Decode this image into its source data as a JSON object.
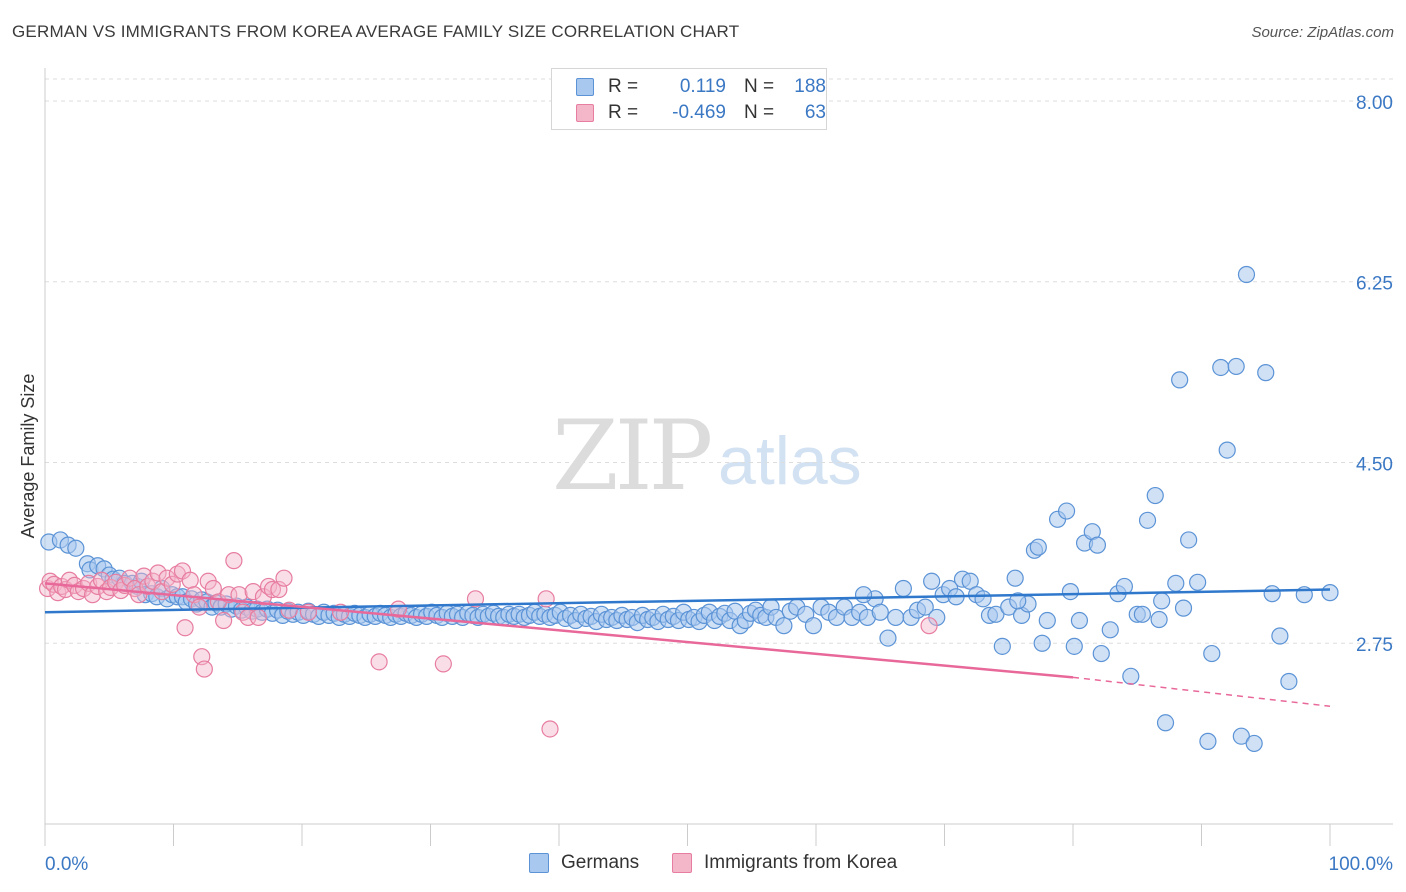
{
  "title": "GERMAN VS IMMIGRANTS FROM KOREA AVERAGE FAMILY SIZE CORRELATION CHART",
  "source": "Source: ZipAtlas.com",
  "watermark": {
    "zip": "ZIP",
    "atlas": "atlas"
  },
  "legend_top": [
    {
      "r_label": "R =",
      "r_value": "0.119",
      "n_label": "N =",
      "n_value": "188"
    },
    {
      "r_label": "R =",
      "r_value": "-0.469",
      "n_label": "N =",
      "n_value": "63"
    }
  ],
  "colors": {
    "blue_fill": "#a9c8ef",
    "blue_stroke": "#5b93d6",
    "blue_line": "#2f78cc",
    "pink_fill": "#f4b6c9",
    "pink_stroke": "#e77da0",
    "pink_line": "#e8689a",
    "tick_label": "#3b78c4",
    "grid": "#dddddd"
  },
  "chart_data": {
    "type": "scatter",
    "title": "GERMAN VS IMMIGRANTS FROM KOREA AVERAGE FAMILY SIZE CORRELATION CHART",
    "xlabel": "",
    "ylabel": "Average Family Size",
    "x_tick_labels": [
      "0.0%",
      "100.0%"
    ],
    "y_ticks": [
      2.75,
      4.5,
      6.25,
      8.0
    ],
    "y_tick_labels": [
      "2.75",
      "4.50",
      "6.25",
      "8.00"
    ],
    "xlim": [
      0,
      100
    ],
    "ylim": [
      1.0,
      8.3
    ],
    "grid": "horizontal-dashed",
    "legend_position": "bottom",
    "series": [
      {
        "name": "Germans",
        "r": 0.119,
        "n": 188,
        "trend": {
          "x": [
            0,
            100
          ],
          "y": [
            3.05,
            3.27
          ]
        },
        "points": [
          [
            0.3,
            3.73
          ],
          [
            1.2,
            3.75
          ],
          [
            1.8,
            3.7
          ],
          [
            2.4,
            3.67
          ],
          [
            3.3,
            3.52
          ],
          [
            3.5,
            3.46
          ],
          [
            4.1,
            3.5
          ],
          [
            4.6,
            3.47
          ],
          [
            5.0,
            3.41
          ],
          [
            5.3,
            3.37
          ],
          [
            5.8,
            3.38
          ],
          [
            6.2,
            3.33
          ],
          [
            6.8,
            3.33
          ],
          [
            7.2,
            3.3
          ],
          [
            7.5,
            3.35
          ],
          [
            7.8,
            3.22
          ],
          [
            8.3,
            3.23
          ],
          [
            8.7,
            3.2
          ],
          [
            9.1,
            3.28
          ],
          [
            9.5,
            3.18
          ],
          [
            9.9,
            3.22
          ],
          [
            10.3,
            3.2
          ],
          [
            10.7,
            3.2
          ],
          [
            11.0,
            3.15
          ],
          [
            11.4,
            3.18
          ],
          [
            11.8,
            3.13
          ],
          [
            12.2,
            3.17
          ],
          [
            12.6,
            3.15
          ],
          [
            13.0,
            3.1
          ],
          [
            13.3,
            3.14
          ],
          [
            13.7,
            3.1
          ],
          [
            14.1,
            3.13
          ],
          [
            14.5,
            3.08
          ],
          [
            14.9,
            3.11
          ],
          [
            15.3,
            3.07
          ],
          [
            15.7,
            3.1
          ],
          [
            16.1,
            3.06
          ],
          [
            16.5,
            3.08
          ],
          [
            16.9,
            3.05
          ],
          [
            17.3,
            3.08
          ],
          [
            17.7,
            3.04
          ],
          [
            18.1,
            3.07
          ],
          [
            18.5,
            3.02
          ],
          [
            18.9,
            3.06
          ],
          [
            19.3,
            3.03
          ],
          [
            19.7,
            3.05
          ],
          [
            20.1,
            3.02
          ],
          [
            20.5,
            3.06
          ],
          [
            20.9,
            3.03
          ],
          [
            21.3,
            3.01
          ],
          [
            21.7,
            3.05
          ],
          [
            22.1,
            3.02
          ],
          [
            22.5,
            3.04
          ],
          [
            22.9,
            3.0
          ],
          [
            23.3,
            3.03
          ],
          [
            23.7,
            3.01
          ],
          [
            24.1,
            3.04
          ],
          [
            24.5,
            3.02
          ],
          [
            24.9,
            3.0
          ],
          [
            25.3,
            3.03
          ],
          [
            25.7,
            3.01
          ],
          [
            26.1,
            3.04
          ],
          [
            26.5,
            3.02
          ],
          [
            26.9,
            3.0
          ],
          [
            27.3,
            3.03
          ],
          [
            27.7,
            3.01
          ],
          [
            28.1,
            3.04
          ],
          [
            28.5,
            3.02
          ],
          [
            28.9,
            3.0
          ],
          [
            29.3,
            3.03
          ],
          [
            29.7,
            3.01
          ],
          [
            30.1,
            3.05
          ],
          [
            30.5,
            3.02
          ],
          [
            30.9,
            3.0
          ],
          [
            31.3,
            3.04
          ],
          [
            31.7,
            3.01
          ],
          [
            32.1,
            3.03
          ],
          [
            32.5,
            3.0
          ],
          [
            32.9,
            3.04
          ],
          [
            33.3,
            3.02
          ],
          [
            33.7,
            3.0
          ],
          [
            34.1,
            3.03
          ],
          [
            34.5,
            3.01
          ],
          [
            34.9,
            3.04
          ],
          [
            35.3,
            3.01
          ],
          [
            35.7,
            3.0
          ],
          [
            36.1,
            3.03
          ],
          [
            36.5,
            3.01
          ],
          [
            36.9,
            3.03
          ],
          [
            37.3,
            3.0
          ],
          [
            37.7,
            3.02
          ],
          [
            38.1,
            3.05
          ],
          [
            38.5,
            3.01
          ],
          [
            38.9,
            3.03
          ],
          [
            39.3,
            3.0
          ],
          [
            39.7,
            3.02
          ],
          [
            40.1,
            3.05
          ],
          [
            40.5,
            2.99
          ],
          [
            40.9,
            3.02
          ],
          [
            41.3,
            2.97
          ],
          [
            41.7,
            3.03
          ],
          [
            42.1,
            2.99
          ],
          [
            42.5,
            3.01
          ],
          [
            42.9,
            2.96
          ],
          [
            43.3,
            3.03
          ],
          [
            43.7,
            2.98
          ],
          [
            44.1,
            3.0
          ],
          [
            44.5,
            2.97
          ],
          [
            44.9,
            3.02
          ],
          [
            45.3,
            2.98
          ],
          [
            45.7,
            3.0
          ],
          [
            46.1,
            2.95
          ],
          [
            46.5,
            3.02
          ],
          [
            46.9,
            2.98
          ],
          [
            47.3,
            3.0
          ],
          [
            47.7,
            2.96
          ],
          [
            48.1,
            3.03
          ],
          [
            48.5,
            2.98
          ],
          [
            48.9,
            3.01
          ],
          [
            49.3,
            2.97
          ],
          [
            49.7,
            3.05
          ],
          [
            50.1,
            2.98
          ],
          [
            50.5,
            3.0
          ],
          [
            50.9,
            2.96
          ],
          [
            51.3,
            3.02
          ],
          [
            51.7,
            3.05
          ],
          [
            52.1,
            2.97
          ],
          [
            52.5,
            3.01
          ],
          [
            52.9,
            3.04
          ],
          [
            53.3,
            2.97
          ],
          [
            53.7,
            3.06
          ],
          [
            54.1,
            2.92
          ],
          [
            54.5,
            2.97
          ],
          [
            54.9,
            3.04
          ],
          [
            55.3,
            3.07
          ],
          [
            55.7,
            3.02
          ],
          [
            56.1,
            3.0
          ],
          [
            56.5,
            3.1
          ],
          [
            56.9,
            3.0
          ],
          [
            57.5,
            2.92
          ],
          [
            58.0,
            3.06
          ],
          [
            58.5,
            3.1
          ],
          [
            59.2,
            3.03
          ],
          [
            59.8,
            2.92
          ],
          [
            60.4,
            3.1
          ],
          [
            61.0,
            3.05
          ],
          [
            61.6,
            3.0
          ],
          [
            62.2,
            3.1
          ],
          [
            62.8,
            3.0
          ],
          [
            63.4,
            3.05
          ],
          [
            64.0,
            3.0
          ],
          [
            64.6,
            3.18
          ],
          [
            65.0,
            3.05
          ],
          [
            65.6,
            2.8
          ],
          [
            66.2,
            3.0
          ],
          [
            66.8,
            3.28
          ],
          [
            67.4,
            3.0
          ],
          [
            67.9,
            3.07
          ],
          [
            68.5,
            3.1
          ],
          [
            69.0,
            3.35
          ],
          [
            69.4,
            3.0
          ],
          [
            69.9,
            3.22
          ],
          [
            70.4,
            3.28
          ],
          [
            70.9,
            3.2
          ],
          [
            71.4,
            3.37
          ],
          [
            72.0,
            3.35
          ],
          [
            72.5,
            3.22
          ],
          [
            73.0,
            3.18
          ],
          [
            73.5,
            3.02
          ],
          [
            74.0,
            3.03
          ],
          [
            74.5,
            2.72
          ],
          [
            75.0,
            3.1
          ],
          [
            75.5,
            3.38
          ],
          [
            76.0,
            3.02
          ],
          [
            76.5,
            3.13
          ],
          [
            77.0,
            3.65
          ],
          [
            77.3,
            3.68
          ],
          [
            77.6,
            2.75
          ],
          [
            78.0,
            2.97
          ],
          [
            78.8,
            3.95
          ],
          [
            79.5,
            4.03
          ],
          [
            80.1,
            2.72
          ],
          [
            80.5,
            2.97
          ],
          [
            80.9,
            3.72
          ],
          [
            81.5,
            3.83
          ],
          [
            81.9,
            3.7
          ],
          [
            82.2,
            2.65
          ],
          [
            82.9,
            2.88
          ],
          [
            83.5,
            3.23
          ],
          [
            84.0,
            3.3
          ],
          [
            84.5,
            2.43
          ],
          [
            85.0,
            3.03
          ],
          [
            85.4,
            3.03
          ],
          [
            85.8,
            3.94
          ],
          [
            86.4,
            4.18
          ],
          [
            86.9,
            3.16
          ],
          [
            87.2,
            1.98
          ],
          [
            88.0,
            3.33
          ],
          [
            88.3,
            5.3
          ],
          [
            89.0,
            3.75
          ],
          [
            89.7,
            3.34
          ],
          [
            90.5,
            1.8
          ],
          [
            90.8,
            2.65
          ],
          [
            91.5,
            5.42
          ],
          [
            92.0,
            4.62
          ],
          [
            92.7,
            5.43
          ],
          [
            93.1,
            1.85
          ],
          [
            93.5,
            6.32
          ],
          [
            94.1,
            1.78
          ],
          [
            95.0,
            5.37
          ],
          [
            95.5,
            3.23
          ],
          [
            96.1,
            2.82
          ],
          [
            96.8,
            2.38
          ],
          [
            98.0,
            3.22
          ],
          [
            100.0,
            3.24
          ],
          [
            63.7,
            3.22
          ],
          [
            75.7,
            3.16
          ],
          [
            79.8,
            3.25
          ],
          [
            86.7,
            2.98
          ],
          [
            88.6,
            3.09
          ]
        ]
      },
      {
        "name": "Immigrants from Korea",
        "r": -0.469,
        "n": 63,
        "trend_solid": {
          "x": [
            0,
            80
          ],
          "y": [
            3.33,
            2.42
          ]
        },
        "trend_dashed": {
          "x": [
            80,
            100
          ],
          "y": [
            2.42,
            2.14
          ]
        },
        "points": [
          [
            0.2,
            3.28
          ],
          [
            0.4,
            3.35
          ],
          [
            0.7,
            3.32
          ],
          [
            1.0,
            3.24
          ],
          [
            1.3,
            3.3
          ],
          [
            1.6,
            3.27
          ],
          [
            1.9,
            3.36
          ],
          [
            2.3,
            3.31
          ],
          [
            2.6,
            3.25
          ],
          [
            3.0,
            3.28
          ],
          [
            3.4,
            3.33
          ],
          [
            3.7,
            3.22
          ],
          [
            4.1,
            3.3
          ],
          [
            4.4,
            3.36
          ],
          [
            4.8,
            3.25
          ],
          [
            5.1,
            3.29
          ],
          [
            5.5,
            3.34
          ],
          [
            5.9,
            3.26
          ],
          [
            6.2,
            3.31
          ],
          [
            6.6,
            3.38
          ],
          [
            7.0,
            3.28
          ],
          [
            7.3,
            3.22
          ],
          [
            7.7,
            3.4
          ],
          [
            8.0,
            3.3
          ],
          [
            8.4,
            3.35
          ],
          [
            8.8,
            3.43
          ],
          [
            9.1,
            3.25
          ],
          [
            9.5,
            3.38
          ],
          [
            9.9,
            3.32
          ],
          [
            10.3,
            3.42
          ],
          [
            10.7,
            3.45
          ],
          [
            10.9,
            2.9
          ],
          [
            11.3,
            3.36
          ],
          [
            11.6,
            3.22
          ],
          [
            12.0,
            3.1
          ],
          [
            12.2,
            2.62
          ],
          [
            12.4,
            2.5
          ],
          [
            12.7,
            3.35
          ],
          [
            13.1,
            3.28
          ],
          [
            13.5,
            3.15
          ],
          [
            13.9,
            2.97
          ],
          [
            14.3,
            3.22
          ],
          [
            14.7,
            3.55
          ],
          [
            15.1,
            3.22
          ],
          [
            15.4,
            3.05
          ],
          [
            15.8,
            3.0
          ],
          [
            16.2,
            3.25
          ],
          [
            16.6,
            3.0
          ],
          [
            17.0,
            3.2
          ],
          [
            17.4,
            3.3
          ],
          [
            17.7,
            3.27
          ],
          [
            18.2,
            3.27
          ],
          [
            18.6,
            3.38
          ],
          [
            19.0,
            3.07
          ],
          [
            20.5,
            3.05
          ],
          [
            23.0,
            3.05
          ],
          [
            26.0,
            2.57
          ],
          [
            27.5,
            3.08
          ],
          [
            31.0,
            2.55
          ],
          [
            33.5,
            3.18
          ],
          [
            39.0,
            3.18
          ],
          [
            39.3,
            1.92
          ],
          [
            68.8,
            2.92
          ]
        ]
      }
    ]
  },
  "bottom_legend": [
    {
      "label": "Germans"
    },
    {
      "label": "Immigrants from Korea"
    }
  ]
}
